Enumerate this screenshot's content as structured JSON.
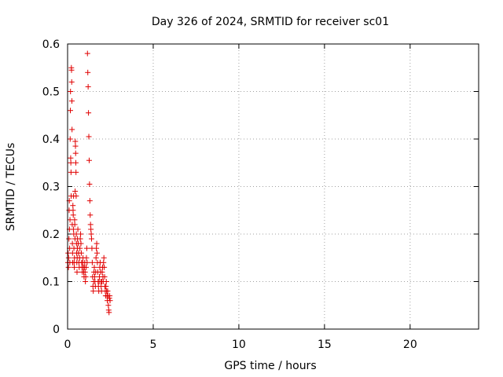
{
  "chart_data": {
    "type": "scatter",
    "title": "Day 326 of 2024, SRMTID for receiver sc01",
    "xlabel": "GPS time / hours",
    "ylabel": "SRMTID / TECUs",
    "xlim": [
      0,
      24
    ],
    "ylim": [
      0,
      0.6
    ],
    "xticks": [
      0,
      5,
      10,
      15,
      20
    ],
    "xtick_labels": [
      "0",
      "5",
      "10",
      "15",
      "20"
    ],
    "yticks": [
      0,
      0.1,
      0.2,
      0.3,
      0.4,
      0.5,
      0.6
    ],
    "ytick_labels": [
      "0",
      "0.1",
      "0.2",
      "0.3",
      "0.4",
      "0.5",
      "0.6"
    ],
    "grid": true,
    "marker": "+",
    "color": "#e00000",
    "series": [
      {
        "name": "sc01",
        "points": [
          [
            0.02,
            0.14
          ],
          [
            0.03,
            0.16
          ],
          [
            0.05,
            0.13
          ],
          [
            0.06,
            0.15
          ],
          [
            0.08,
            0.19
          ],
          [
            0.09,
            0.25
          ],
          [
            0.1,
            0.27
          ],
          [
            0.11,
            0.21
          ],
          [
            0.12,
            0.17
          ],
          [
            0.13,
            0.14
          ],
          [
            0.14,
            0.23
          ],
          [
            0.15,
            0.4
          ],
          [
            0.16,
            0.46
          ],
          [
            0.17,
            0.5
          ],
          [
            0.18,
            0.36
          ],
          [
            0.19,
            0.35
          ],
          [
            0.2,
            0.33
          ],
          [
            0.21,
            0.28
          ],
          [
            0.22,
            0.55
          ],
          [
            0.23,
            0.545
          ],
          [
            0.24,
            0.52
          ],
          [
            0.25,
            0.48
          ],
          [
            0.26,
            0.42
          ],
          [
            0.27,
            0.22
          ],
          [
            0.28,
            0.18
          ],
          [
            0.29,
            0.16
          ],
          [
            0.3,
            0.14
          ],
          [
            0.31,
            0.26
          ],
          [
            0.32,
            0.25
          ],
          [
            0.33,
            0.24
          ],
          [
            0.34,
            0.21
          ],
          [
            0.35,
            0.28
          ],
          [
            0.36,
            0.2
          ],
          [
            0.37,
            0.17
          ],
          [
            0.38,
            0.14
          ],
          [
            0.39,
            0.13
          ],
          [
            0.4,
            0.15
          ],
          [
            0.41,
            0.23
          ],
          [
            0.42,
            0.22
          ],
          [
            0.43,
            0.19
          ],
          [
            0.44,
            0.29
          ],
          [
            0.45,
            0.395
          ],
          [
            0.46,
            0.385
          ],
          [
            0.47,
            0.37
          ],
          [
            0.48,
            0.35
          ],
          [
            0.49,
            0.33
          ],
          [
            0.5,
            0.28
          ],
          [
            0.51,
            0.2
          ],
          [
            0.52,
            0.18
          ],
          [
            0.53,
            0.16
          ],
          [
            0.54,
            0.14
          ],
          [
            0.55,
            0.12
          ],
          [
            0.56,
            0.15
          ],
          [
            0.57,
            0.17
          ],
          [
            0.58,
            0.19
          ],
          [
            0.6,
            0.21
          ],
          [
            0.62,
            0.18
          ],
          [
            0.64,
            0.16
          ],
          [
            0.66,
            0.14
          ],
          [
            0.68,
            0.13
          ],
          [
            0.7,
            0.15
          ],
          [
            0.72,
            0.17
          ],
          [
            0.74,
            0.19
          ],
          [
            0.76,
            0.2
          ],
          [
            0.78,
            0.18
          ],
          [
            0.8,
            0.16
          ],
          [
            0.82,
            0.14
          ],
          [
            0.84,
            0.13
          ],
          [
            0.86,
            0.12
          ],
          [
            0.88,
            0.14
          ],
          [
            0.9,
            0.15
          ],
          [
            0.92,
            0.13
          ],
          [
            0.94,
            0.12
          ],
          [
            0.96,
            0.11
          ],
          [
            0.98,
            0.13
          ],
          [
            1.0,
            0.14
          ],
          [
            1.02,
            0.12
          ],
          [
            1.04,
            0.1
          ],
          [
            1.06,
            0.11
          ],
          [
            1.08,
            0.13
          ],
          [
            1.1,
            0.15
          ],
          [
            1.12,
            0.17
          ],
          [
            1.14,
            0.14
          ],
          [
            1.16,
            0.58
          ],
          [
            1.18,
            0.54
          ],
          [
            1.2,
            0.51
          ],
          [
            1.22,
            0.455
          ],
          [
            1.24,
            0.405
          ],
          [
            1.26,
            0.355
          ],
          [
            1.28,
            0.305
          ],
          [
            1.3,
            0.27
          ],
          [
            1.32,
            0.24
          ],
          [
            1.34,
            0.22
          ],
          [
            1.36,
            0.21
          ],
          [
            1.38,
            0.2
          ],
          [
            1.4,
            0.19
          ],
          [
            1.42,
            0.17
          ],
          [
            1.44,
            0.14
          ],
          [
            1.46,
            0.11
          ],
          [
            1.48,
            0.09
          ],
          [
            1.5,
            0.08
          ],
          [
            1.52,
            0.1
          ],
          [
            1.54,
            0.12
          ],
          [
            1.56,
            0.13
          ],
          [
            1.58,
            0.11
          ],
          [
            1.6,
            0.1
          ],
          [
            1.62,
            0.09
          ],
          [
            1.64,
            0.12
          ],
          [
            1.66,
            0.15
          ],
          [
            1.68,
            0.17
          ],
          [
            1.7,
            0.18
          ],
          [
            1.72,
            0.16
          ],
          [
            1.74,
            0.14
          ],
          [
            1.76,
            0.12
          ],
          [
            1.78,
            0.1
          ],
          [
            1.8,
            0.09
          ],
          [
            1.82,
            0.08
          ],
          [
            1.84,
            0.1
          ],
          [
            1.86,
            0.11
          ],
          [
            1.88,
            0.13
          ],
          [
            1.9,
            0.14
          ],
          [
            1.92,
            0.12
          ],
          [
            1.94,
            0.1
          ],
          [
            1.96,
            0.09
          ],
          [
            1.98,
            0.08
          ],
          [
            2.0,
            0.1
          ],
          [
            2.02,
            0.12
          ],
          [
            2.04,
            0.13
          ],
          [
            2.06,
            0.11
          ],
          [
            2.08,
            0.1
          ],
          [
            2.1,
            0.14
          ],
          [
            2.12,
            0.15
          ],
          [
            2.14,
            0.13
          ],
          [
            2.16,
            0.11
          ],
          [
            2.18,
            0.09
          ],
          [
            2.2,
            0.08
          ],
          [
            2.22,
            0.07
          ],
          [
            2.24,
            0.09
          ],
          [
            2.26,
            0.1
          ],
          [
            2.28,
            0.08
          ],
          [
            2.3,
            0.07
          ],
          [
            2.32,
            0.06
          ],
          [
            2.34,
            0.08
          ],
          [
            2.36,
            0.07
          ],
          [
            2.38,
            0.05
          ],
          [
            2.4,
            0.04
          ],
          [
            2.42,
            0.035
          ],
          [
            2.44,
            0.065
          ],
          [
            2.46,
            0.07
          ],
          [
            2.48,
            0.06
          ]
        ]
      }
    ]
  }
}
